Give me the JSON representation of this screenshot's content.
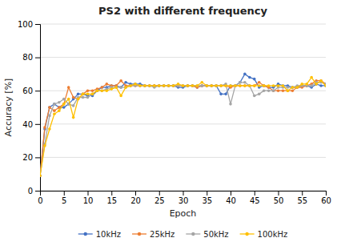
{
  "chart_data": {
    "type": "line",
    "title": "PS2 with different frequency",
    "x_label": "Epoch",
    "y_label": "Accuracy [%]",
    "x": [
      0,
      1,
      2,
      3,
      4,
      5,
      6,
      7,
      8,
      9,
      10,
      11,
      12,
      13,
      14,
      15,
      16,
      17,
      18,
      19,
      20,
      21,
      22,
      23,
      24,
      25,
      26,
      27,
      28,
      29,
      30,
      31,
      32,
      33,
      34,
      35,
      36,
      37,
      38,
      39,
      40,
      41,
      42,
      43,
      44,
      45,
      46,
      47,
      48,
      49,
      50,
      51,
      52,
      53,
      54,
      55,
      56,
      57,
      58,
      59,
      60
    ],
    "xlim": [
      0,
      60
    ],
    "ylim": [
      0,
      100
    ],
    "xticks": [
      0,
      5,
      10,
      15,
      20,
      25,
      30,
      35,
      40,
      45,
      50,
      55,
      60
    ],
    "yticks": [
      0,
      20,
      40,
      60,
      80,
      100
    ],
    "grid": "y",
    "legend": "bottom",
    "series": [
      {
        "name": "10kHz",
        "color": "#4472C4",
        "marker": "circle",
        "values": [
          9,
          37,
          50,
          52,
          50,
          50,
          52,
          55,
          58,
          58,
          57,
          57,
          60,
          62,
          62,
          63,
          63,
          62,
          65,
          64,
          64,
          64,
          63,
          63,
          63,
          63,
          63,
          63,
          63,
          62,
          62,
          63,
          63,
          62,
          63,
          63,
          63,
          63,
          58,
          58,
          63,
          63,
          65,
          70,
          68,
          67,
          62,
          63,
          62,
          62,
          64,
          63,
          63,
          62,
          62,
          63,
          63,
          62,
          64,
          63,
          63
        ]
      },
      {
        "name": "25kHz",
        "color": "#ED7D31",
        "marker": "circle",
        "values": [
          9,
          38,
          50,
          48,
          50,
          52,
          62,
          56,
          55,
          58,
          60,
          60,
          61,
          62,
          64,
          63,
          63,
          66,
          63,
          63,
          63,
          63,
          63,
          63,
          63,
          63,
          63,
          63,
          63,
          63,
          63,
          63,
          63,
          62,
          63,
          63,
          63,
          63,
          63,
          63,
          62,
          63,
          63,
          63,
          63,
          63,
          65,
          63,
          62,
          60,
          60,
          60,
          60,
          60,
          62,
          62,
          63,
          64,
          66,
          66,
          64
        ]
      },
      {
        "name": "50kHz",
        "color": "#A5A5A5",
        "marker": "circle",
        "values": [
          9,
          28,
          45,
          52,
          53,
          55,
          52,
          51,
          56,
          56,
          56,
          58,
          60,
          60,
          61,
          62,
          62,
          62,
          62,
          63,
          63,
          63,
          63,
          63,
          62,
          63,
          63,
          63,
          63,
          63,
          63,
          63,
          63,
          63,
          63,
          63,
          63,
          63,
          63,
          64,
          52,
          63,
          65,
          65,
          63,
          57,
          58,
          60,
          60,
          60,
          62,
          62,
          62,
          62,
          63,
          63,
          63,
          63,
          65,
          65,
          64
        ]
      },
      {
        "name": "100kHz",
        "color": "#FFC000",
        "marker": "circle",
        "values": [
          9,
          27,
          37,
          46,
          48,
          52,
          55,
          44,
          55,
          58,
          58,
          58,
          60,
          60,
          60,
          61,
          62,
          57,
          62,
          63,
          64,
          63,
          63,
          63,
          63,
          63,
          63,
          63,
          63,
          64,
          63,
          63,
          63,
          63,
          65,
          63,
          63,
          63,
          63,
          63,
          63,
          63,
          63,
          63,
          63,
          63,
          63,
          63,
          63,
          63,
          63,
          63,
          60,
          62,
          62,
          64,
          64,
          68,
          64,
          66,
          63
        ]
      }
    ]
  }
}
